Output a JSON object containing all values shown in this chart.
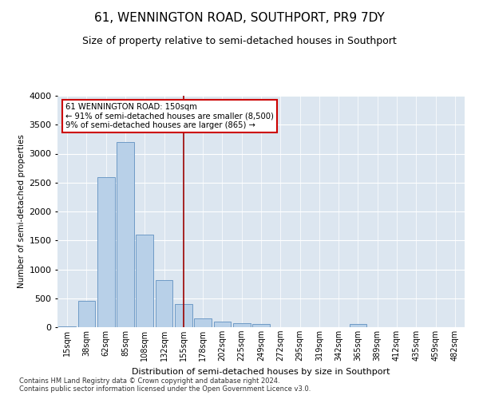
{
  "title": "61, WENNINGTON ROAD, SOUTHPORT, PR9 7DY",
  "subtitle": "Size of property relative to semi-detached houses in Southport",
  "xlabel": "Distribution of semi-detached houses by size in Southport",
  "ylabel": "Number of semi-detached properties",
  "footnote1": "Contains HM Land Registry data © Crown copyright and database right 2024.",
  "footnote2": "Contains public sector information licensed under the Open Government Licence v3.0.",
  "categories": [
    "15sqm",
    "38sqm",
    "62sqm",
    "85sqm",
    "108sqm",
    "132sqm",
    "155sqm",
    "178sqm",
    "202sqm",
    "225sqm",
    "249sqm",
    "272sqm",
    "295sqm",
    "319sqm",
    "342sqm",
    "365sqm",
    "389sqm",
    "412sqm",
    "435sqm",
    "459sqm",
    "482sqm"
  ],
  "values": [
    15,
    460,
    2600,
    3200,
    1600,
    820,
    400,
    155,
    90,
    75,
    55,
    5,
    5,
    5,
    5,
    60,
    5,
    5,
    5,
    5,
    5
  ],
  "bar_color": "#b8d0e8",
  "bar_edge_color": "#6090c0",
  "vline_index": 6,
  "vline_color": "#990000",
  "annotation_line1": "61 WENNINGTON ROAD: 150sqm",
  "annotation_line2": "← 91% of semi-detached houses are smaller (8,500)",
  "annotation_line3": "9% of semi-detached houses are larger (865) →",
  "annotation_box_color": "#cc0000",
  "ylim": [
    0,
    4000
  ],
  "yticks": [
    0,
    500,
    1000,
    1500,
    2000,
    2500,
    3000,
    3500,
    4000
  ],
  "bg_color": "#dce6f0",
  "grid_color": "#ffffff",
  "title_fontsize": 11,
  "subtitle_fontsize": 9
}
